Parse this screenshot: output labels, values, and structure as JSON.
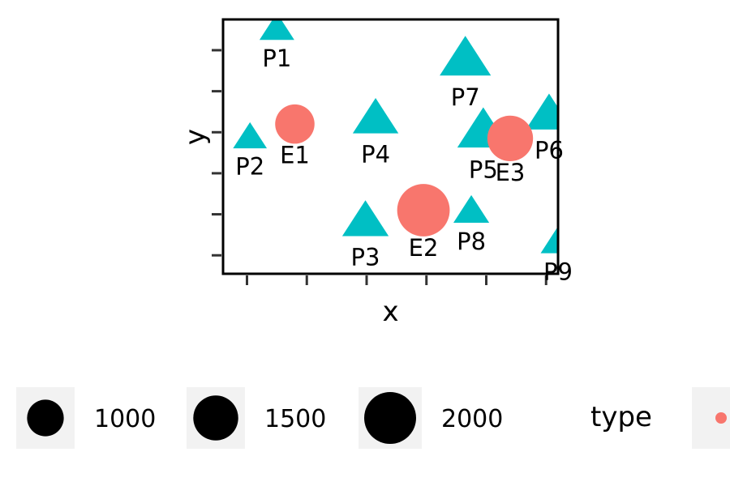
{
  "chart_data": {
    "type": "scatter",
    "title": "",
    "xlabel": "x",
    "ylabel": "y",
    "xlim": [
      0.6,
      6.2
    ],
    "ylim": [
      0.55,
      6.75
    ],
    "x_ticks": [
      1,
      2,
      3,
      4,
      5,
      6
    ],
    "y_ticks": [
      1,
      2,
      3,
      4,
      5,
      6
    ],
    "grid": false,
    "points": [
      {
        "label": "P1",
        "x": 1.5,
        "y": 6.5,
        "size": 900,
        "type": "P"
      },
      {
        "label": "P2",
        "x": 1.05,
        "y": 3.85,
        "size": 850,
        "type": "P"
      },
      {
        "label": "P3",
        "x": 2.98,
        "y": 1.8,
        "size": 1600,
        "type": "P"
      },
      {
        "label": "P4",
        "x": 3.15,
        "y": 4.3,
        "size": 1550,
        "type": "P"
      },
      {
        "label": "P5",
        "x": 4.95,
        "y": 4.0,
        "size": 2000,
        "type": "P"
      },
      {
        "label": "P6",
        "x": 6.05,
        "y": 4.4,
        "size": 1600,
        "type": "P"
      },
      {
        "label": "P7",
        "x": 4.65,
        "y": 5.75,
        "size": 1950,
        "type": "P"
      },
      {
        "label": "P8",
        "x": 4.75,
        "y": 2.05,
        "size": 950,
        "type": "P"
      },
      {
        "label": "P9",
        "x": 6.2,
        "y": 1.3,
        "size": 900,
        "type": "P"
      },
      {
        "label": "E1",
        "x": 1.8,
        "y": 4.2,
        "size": 1150,
        "type": "E"
      },
      {
        "label": "E2",
        "x": 3.95,
        "y": 2.1,
        "size": 2050,
        "type": "E"
      },
      {
        "label": "E3",
        "x": 5.4,
        "y": 3.85,
        "size": 1550,
        "type": "E"
      }
    ],
    "legend": {
      "placement": "bottom",
      "size_title": "",
      "size_entries": [
        {
          "label": "1000",
          "value": 1000
        },
        {
          "label": "1500",
          "value": 1500
        },
        {
          "label": "2000",
          "value": 2000
        }
      ],
      "type_title": "type",
      "type_entries": [
        {
          "key": "E",
          "color": "#F8766D"
        },
        {
          "key": "P",
          "color": "#00BFC4"
        }
      ]
    }
  }
}
